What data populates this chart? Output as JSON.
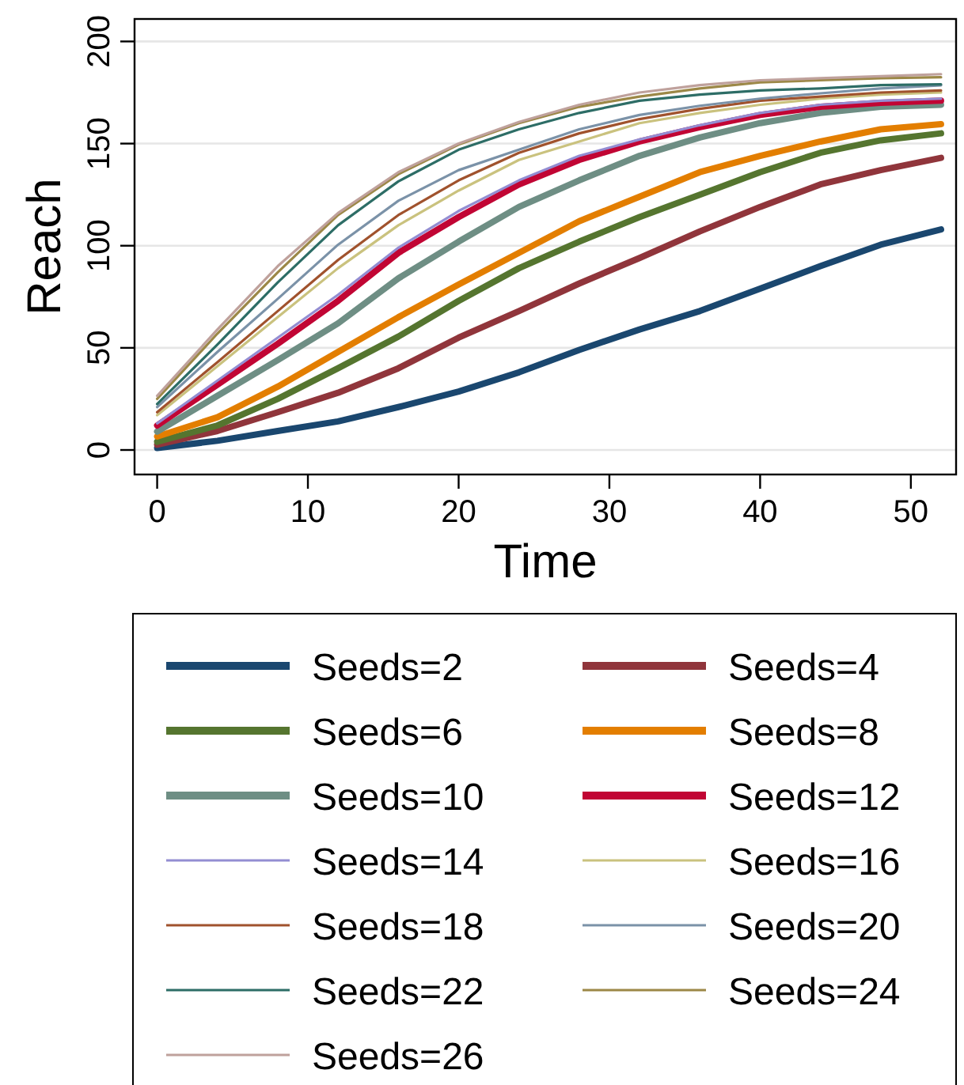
{
  "chart_data": {
    "type": "line",
    "xlabel": "Time",
    "ylabel": "Reach",
    "xlim": [
      -1.5,
      53
    ],
    "ylim": [
      -12,
      211
    ],
    "xticks": [
      0,
      10,
      20,
      30,
      40,
      50
    ],
    "yticks": [
      0,
      50,
      100,
      150,
      200
    ],
    "grid": "y",
    "legend": "bottom",
    "marker": "none",
    "line_style": "solid",
    "x": [
      0,
      4,
      8,
      12,
      16,
      20,
      24,
      28,
      32,
      36,
      40,
      44,
      48,
      52
    ],
    "series": [
      {
        "name": "Seeds=2",
        "color": "#1a476f",
        "values": [
          1,
          4.5,
          9.3,
          14,
          21,
          28.6,
          38,
          49,
          59,
          68,
          79,
          90,
          100.5,
          108
        ]
      },
      {
        "name": "Seeds=4",
        "color": "#90353b",
        "values": [
          2.6,
          9.3,
          18.5,
          28,
          40,
          55,
          68,
          81.5,
          94,
          107,
          119,
          130,
          137,
          143
        ]
      },
      {
        "name": "Seeds=6",
        "color": "#55752f",
        "values": [
          4,
          12,
          25,
          40,
          55.5,
          73,
          89,
          102,
          114,
          125,
          136,
          145.5,
          151.6,
          155
        ]
      },
      {
        "name": "Seeds=8",
        "color": "#e37e00",
        "values": [
          6.6,
          16,
          31,
          48,
          65,
          81,
          96.5,
          112,
          124,
          136,
          144,
          151,
          157,
          159.5
        ]
      },
      {
        "name": "Seeds=10",
        "color": "#6e8e84",
        "values": [
          9,
          26.5,
          44,
          62,
          84,
          102,
          119,
          132,
          144,
          153,
          160,
          165,
          168,
          169
        ]
      },
      {
        "name": "Seeds=12",
        "color": "#c10534",
        "values": [
          12,
          32,
          52,
          73,
          96.5,
          114,
          130,
          142,
          151,
          158,
          164,
          168,
          170,
          171
        ]
      },
      {
        "name": "Seeds=14",
        "color": "#938dd2",
        "values": [
          13,
          34,
          55,
          76,
          99,
          117,
          132,
          144,
          152,
          159,
          165,
          169,
          171,
          172
        ]
      },
      {
        "name": "Seeds=16",
        "color": "#cac27e",
        "values": [
          17,
          41,
          65,
          89,
          110,
          127,
          142,
          151,
          160,
          165,
          169,
          172,
          174,
          175
        ]
      },
      {
        "name": "Seeds=18",
        "color": "#a0522d",
        "values": [
          18.5,
          43,
          68,
          93,
          115,
          132,
          145.5,
          155,
          162,
          167,
          171,
          173,
          175,
          176
        ]
      },
      {
        "name": "Seeds=20",
        "color": "#7b92a8",
        "values": [
          21,
          48,
          74,
          100.5,
          122,
          137,
          147,
          157,
          164,
          168.5,
          172,
          174.6,
          177,
          178.5
        ]
      },
      {
        "name": "Seeds=22",
        "color": "#2d6d66",
        "values": [
          22.5,
          51.6,
          82,
          110,
          131.5,
          147,
          157,
          165,
          171,
          174,
          176,
          177,
          178.6,
          179
        ]
      },
      {
        "name": "Seeds=24",
        "color": "#9c8847",
        "values": [
          25,
          57,
          87,
          115,
          135,
          149.5,
          160,
          168,
          173,
          177,
          180,
          181,
          182,
          182.5
        ]
      },
      {
        "name": "Seeds=26",
        "color": "#bfa19c",
        "values": [
          26.5,
          59,
          90,
          116,
          136,
          150,
          160.6,
          169,
          175,
          178.6,
          181,
          182,
          183,
          184
        ]
      }
    ]
  }
}
